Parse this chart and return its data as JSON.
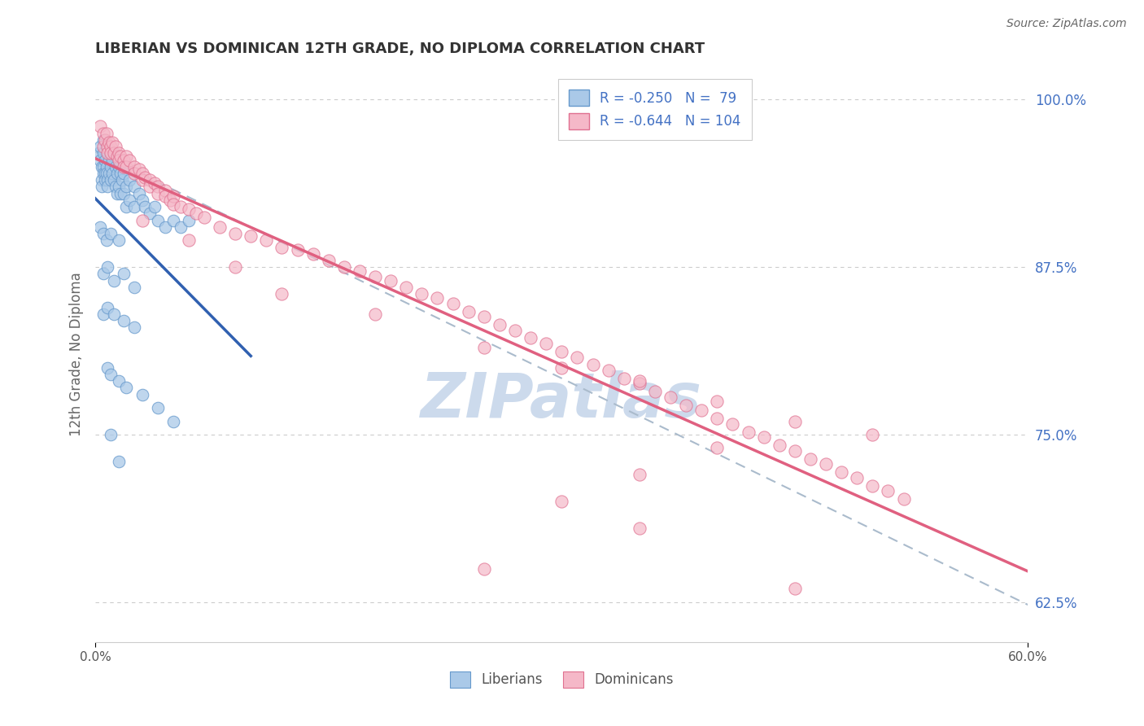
{
  "title": "LIBERIAN VS DOMINICAN 12TH GRADE, NO DIPLOMA CORRELATION CHART",
  "source": "Source: ZipAtlas.com",
  "ylabel_label": "12th Grade, No Diploma",
  "ylabel_ticks": [
    "62.5%",
    "75.0%",
    "87.5%",
    "100.0%"
  ],
  "ylabel_vals": [
    0.625,
    0.75,
    0.875,
    1.0
  ],
  "xlim": [
    0.0,
    0.6
  ],
  "ylim": [
    0.595,
    1.025
  ],
  "bg_color": "#ffffff",
  "grid_color": "#cccccc",
  "title_color": "#333333",
  "axis_label_color": "#666666",
  "right_tick_color": "#4472c4",
  "watermark_color": "#ccdaec",
  "watermark_text": "ZIPatlas",
  "blue_face": "#aac9e8",
  "blue_edge": "#6699cc",
  "pink_face": "#f5b8c8",
  "pink_edge": "#e07090",
  "blue_line_color": "#3060b0",
  "pink_line_color": "#e06080",
  "dash_line_color": "#aabbcc",
  "legend_r1": "R = -0.250",
  "legend_n1": "N =  79",
  "legend_r2": "R = -0.644",
  "legend_n2": "N = 104",
  "blue_x": [
    0.002,
    0.003,
    0.003,
    0.004,
    0.004,
    0.004,
    0.005,
    0.005,
    0.005,
    0.005,
    0.006,
    0.006,
    0.006,
    0.007,
    0.007,
    0.007,
    0.008,
    0.008,
    0.008,
    0.009,
    0.009,
    0.01,
    0.01,
    0.01,
    0.011,
    0.011,
    0.012,
    0.012,
    0.013,
    0.013,
    0.014,
    0.014,
    0.015,
    0.015,
    0.016,
    0.016,
    0.017,
    0.018,
    0.018,
    0.02,
    0.02,
    0.022,
    0.022,
    0.025,
    0.025,
    0.028,
    0.03,
    0.032,
    0.035,
    0.038,
    0.04,
    0.045,
    0.05,
    0.055,
    0.06,
    0.003,
    0.005,
    0.007,
    0.01,
    0.015,
    0.005,
    0.008,
    0.012,
    0.018,
    0.025,
    0.005,
    0.008,
    0.012,
    0.018,
    0.025,
    0.008,
    0.01,
    0.015,
    0.02,
    0.03,
    0.04,
    0.05,
    0.01,
    0.015
  ],
  "blue_y": [
    0.96,
    0.955,
    0.965,
    0.95,
    0.94,
    0.935,
    0.97,
    0.96,
    0.95,
    0.945,
    0.955,
    0.945,
    0.94,
    0.965,
    0.95,
    0.945,
    0.96,
    0.94,
    0.935,
    0.955,
    0.945,
    0.96,
    0.95,
    0.94,
    0.955,
    0.945,
    0.96,
    0.94,
    0.95,
    0.935,
    0.945,
    0.93,
    0.95,
    0.935,
    0.945,
    0.93,
    0.94,
    0.945,
    0.93,
    0.935,
    0.92,
    0.94,
    0.925,
    0.935,
    0.92,
    0.93,
    0.925,
    0.92,
    0.915,
    0.92,
    0.91,
    0.905,
    0.91,
    0.905,
    0.91,
    0.905,
    0.9,
    0.895,
    0.9,
    0.895,
    0.87,
    0.875,
    0.865,
    0.87,
    0.86,
    0.84,
    0.845,
    0.84,
    0.835,
    0.83,
    0.8,
    0.795,
    0.79,
    0.785,
    0.78,
    0.77,
    0.76,
    0.75,
    0.73
  ],
  "pink_x": [
    0.003,
    0.005,
    0.005,
    0.006,
    0.007,
    0.008,
    0.008,
    0.009,
    0.01,
    0.01,
    0.011,
    0.012,
    0.013,
    0.014,
    0.015,
    0.015,
    0.016,
    0.018,
    0.018,
    0.02,
    0.02,
    0.022,
    0.025,
    0.025,
    0.028,
    0.03,
    0.03,
    0.032,
    0.035,
    0.035,
    0.038,
    0.04,
    0.04,
    0.045,
    0.045,
    0.048,
    0.05,
    0.05,
    0.055,
    0.06,
    0.065,
    0.07,
    0.08,
    0.09,
    0.1,
    0.11,
    0.12,
    0.13,
    0.14,
    0.15,
    0.16,
    0.17,
    0.18,
    0.19,
    0.2,
    0.21,
    0.22,
    0.23,
    0.24,
    0.25,
    0.26,
    0.27,
    0.28,
    0.29,
    0.3,
    0.31,
    0.32,
    0.33,
    0.34,
    0.35,
    0.36,
    0.37,
    0.38,
    0.39,
    0.4,
    0.41,
    0.42,
    0.43,
    0.44,
    0.45,
    0.46,
    0.47,
    0.48,
    0.49,
    0.5,
    0.51,
    0.52,
    0.03,
    0.06,
    0.09,
    0.12,
    0.18,
    0.25,
    0.3,
    0.35,
    0.4,
    0.45,
    0.5,
    0.35,
    0.4,
    0.3,
    0.35,
    0.25,
    0.45
  ],
  "pink_y": [
    0.98,
    0.975,
    0.965,
    0.97,
    0.975,
    0.965,
    0.96,
    0.968,
    0.965,
    0.96,
    0.968,
    0.96,
    0.965,
    0.958,
    0.96,
    0.955,
    0.958,
    0.955,
    0.95,
    0.958,
    0.95,
    0.955,
    0.95,
    0.945,
    0.948,
    0.945,
    0.94,
    0.942,
    0.94,
    0.935,
    0.938,
    0.935,
    0.93,
    0.932,
    0.928,
    0.925,
    0.928,
    0.922,
    0.92,
    0.918,
    0.915,
    0.912,
    0.905,
    0.9,
    0.898,
    0.895,
    0.89,
    0.888,
    0.885,
    0.88,
    0.875,
    0.872,
    0.868,
    0.865,
    0.86,
    0.855,
    0.852,
    0.848,
    0.842,
    0.838,
    0.832,
    0.828,
    0.822,
    0.818,
    0.812,
    0.808,
    0.802,
    0.798,
    0.792,
    0.788,
    0.782,
    0.778,
    0.772,
    0.768,
    0.762,
    0.758,
    0.752,
    0.748,
    0.742,
    0.738,
    0.732,
    0.728,
    0.722,
    0.718,
    0.712,
    0.708,
    0.702,
    0.91,
    0.895,
    0.875,
    0.855,
    0.84,
    0.815,
    0.8,
    0.79,
    0.775,
    0.76,
    0.75,
    0.72,
    0.74,
    0.7,
    0.68,
    0.65,
    0.635
  ]
}
